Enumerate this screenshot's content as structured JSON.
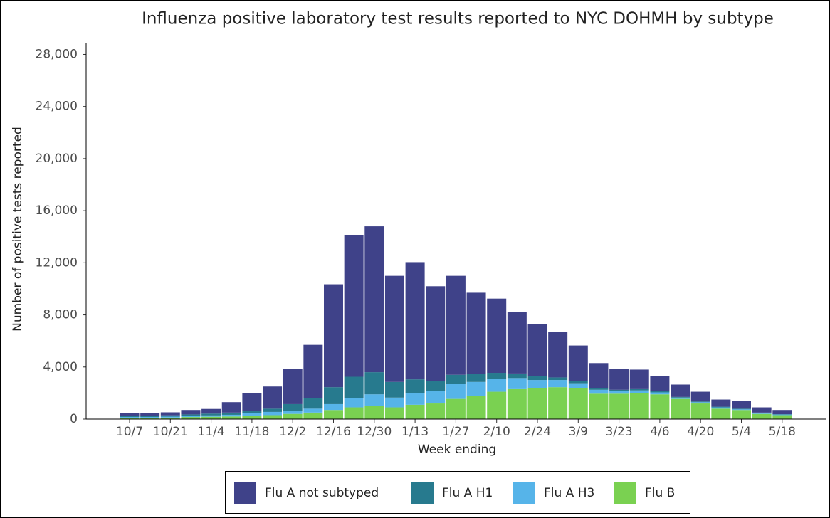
{
  "chart_data": {
    "type": "stacked-bar",
    "title": "Influenza positive laboratory test results reported to NYC DOHMH by subtype",
    "x_label": "Week ending",
    "y_label": "Number of positive tests reported",
    "categories": [
      "10/7",
      null,
      "10/21",
      null,
      "11/4",
      null,
      "11/18",
      null,
      "12/2",
      null,
      "12/16",
      null,
      "12/30",
      null,
      "1/13",
      null,
      "1/27",
      null,
      "2/10",
      null,
      "2/24",
      null,
      "3/9",
      null,
      "3/23",
      null,
      "4/6",
      null,
      "4/20",
      null,
      "5/4",
      null,
      "5/18"
    ],
    "series": [
      {
        "name": "Flu A not subtyped",
        "color": "#3f4289",
        "values": [
          200,
          200,
          230,
          340,
          360,
          800,
          1400,
          1700,
          2700,
          4100,
          7900,
          10900,
          11200,
          8150,
          9000,
          7250,
          7600,
          6250,
          5700,
          4700,
          4000,
          3500,
          2750,
          1900,
          1600,
          1500,
          1150,
          950,
          750,
          550,
          600,
          400,
          320
        ]
      },
      {
        "name": "Flu A H1",
        "color": "#277a8e",
        "values": [
          90,
          90,
          100,
          120,
          140,
          170,
          130,
          250,
          550,
          800,
          1300,
          1650,
          1700,
          1200,
          1050,
          800,
          700,
          600,
          450,
          350,
          300,
          200,
          150,
          150,
          100,
          100,
          100,
          50,
          50,
          50,
          50,
          50,
          30
        ]
      },
      {
        "name": "Flu A H3",
        "color": "#56b4e9",
        "values": [
          60,
          60,
          70,
          80,
          100,
          130,
          200,
          250,
          200,
          300,
          450,
          700,
          900,
          750,
          900,
          950,
          1150,
          1050,
          1000,
          850,
          650,
          550,
          400,
          300,
          200,
          200,
          150,
          100,
          100,
          100,
          50,
          50,
          50
        ]
      },
      {
        "name": "Flu B",
        "color": "#7ad151",
        "values": [
          100,
          100,
          120,
          160,
          180,
          200,
          270,
          300,
          400,
          500,
          700,
          900,
          1000,
          900,
          1100,
          1200,
          1550,
          1800,
          2100,
          2300,
          2350,
          2450,
          2350,
          1950,
          1950,
          2000,
          1900,
          1550,
          1200,
          800,
          700,
          400,
          300
        ]
      }
    ],
    "ylim": [
      0,
      28900
    ],
    "yticks": [
      0,
      {
        "value": 4000,
        "label": "4,000"
      },
      {
        "value": 8000,
        "label": "8,000"
      },
      {
        "value": 12000,
        "label": "12,000"
      },
      {
        "value": 16000,
        "label": "16,000"
      },
      {
        "value": 20000,
        "label": "20,000"
      },
      {
        "value": 24000,
        "label": "24,000"
      },
      {
        "value": 28000,
        "label": "28,000"
      }
    ],
    "grid": false,
    "legend": "bottom"
  }
}
